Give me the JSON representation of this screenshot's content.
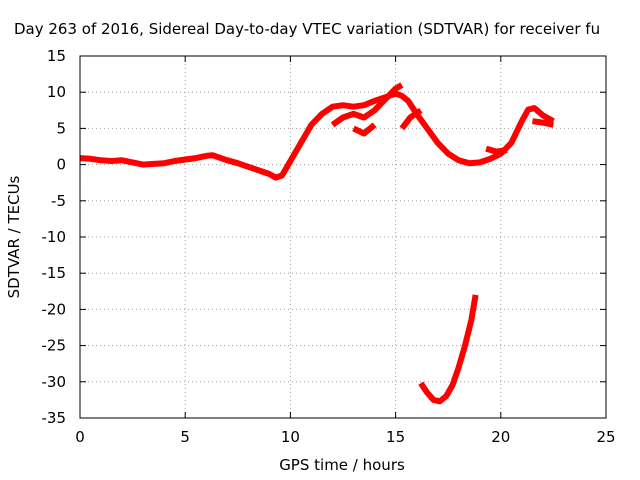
{
  "chart_data": {
    "type": "line",
    "title": "Day 263 of 2016, Sidereal Day-to-day VTEC variation (SDTVAR) for receiver fu",
    "xlabel": "GPS time / hours",
    "ylabel": "SDTVAR / TECUs",
    "xlim": [
      0,
      25
    ],
    "ylim": [
      -35,
      15
    ],
    "x_ticks": [
      0,
      5,
      10,
      15,
      20,
      25
    ],
    "y_ticks": [
      15,
      10,
      5,
      0,
      -5,
      -10,
      -15,
      -20,
      -25,
      -30,
      -35
    ],
    "grid": true,
    "legend": "none",
    "series_color": "#ff0000",
    "series": [
      {
        "x": [
          0,
          0.5,
          1,
          1.5,
          2,
          2.5,
          3,
          3.5,
          4,
          4.5,
          5,
          5.5,
          6,
          6.3,
          6.6,
          7,
          7.5,
          8,
          8.5,
          9,
          9.3,
          9.6,
          10,
          10.5,
          11,
          11.5,
          12,
          12.5,
          13,
          13.5,
          14,
          14.5,
          15,
          15.3,
          15.6,
          16,
          16.5,
          17,
          17.5,
          18,
          18.5,
          19,
          19.5,
          20,
          20.5,
          21,
          21.3,
          21.6,
          22,
          22.5
        ],
        "y": [
          0.9,
          0.8,
          0.6,
          0.5,
          0.6,
          0.3,
          0,
          0.1,
          0.2,
          0.5,
          0.7,
          0.9,
          1.2,
          1.3,
          1.0,
          0.6,
          0.2,
          -0.3,
          -0.8,
          -1.3,
          -1.8,
          -1.5,
          0.5,
          3.0,
          5.5,
          7.0,
          8.0,
          8.2,
          8.0,
          8.2,
          8.8,
          9.3,
          9.8,
          9.5,
          8.8,
          7.0,
          5.0,
          3.0,
          1.5,
          0.6,
          0.2,
          0.3,
          0.8,
          1.5,
          3.0,
          6.0,
          7.6,
          7.8,
          6.8,
          6.0
        ]
      },
      {
        "x": [
          12,
          12.5,
          13,
          13.5,
          14,
          14.5,
          15,
          15.3
        ],
        "y": [
          5.5,
          6.5,
          7.0,
          6.5,
          7.5,
          9.0,
          10.5,
          11.0
        ]
      },
      {
        "x": [
          13,
          13.5,
          14
        ],
        "y": [
          5.0,
          4.3,
          5.5
        ]
      },
      {
        "x": [
          15.3,
          15.7,
          16.2
        ],
        "y": [
          5.0,
          6.5,
          7.5
        ]
      },
      {
        "x": [
          19.3,
          19.8,
          20.3
        ],
        "y": [
          2.2,
          1.8,
          2.0
        ]
      },
      {
        "x": [
          21.5,
          22,
          22.5
        ],
        "y": [
          6.0,
          5.8,
          5.5
        ]
      },
      {
        "x": [
          16.2,
          16.5,
          16.8,
          17.1,
          17.4,
          17.7,
          18,
          18.3,
          18.6,
          18.8
        ],
        "y": [
          -30.2,
          -31.5,
          -32.5,
          -32.7,
          -32.0,
          -30.5,
          -28.0,
          -25.0,
          -21.5,
          -18.0
        ]
      }
    ]
  }
}
